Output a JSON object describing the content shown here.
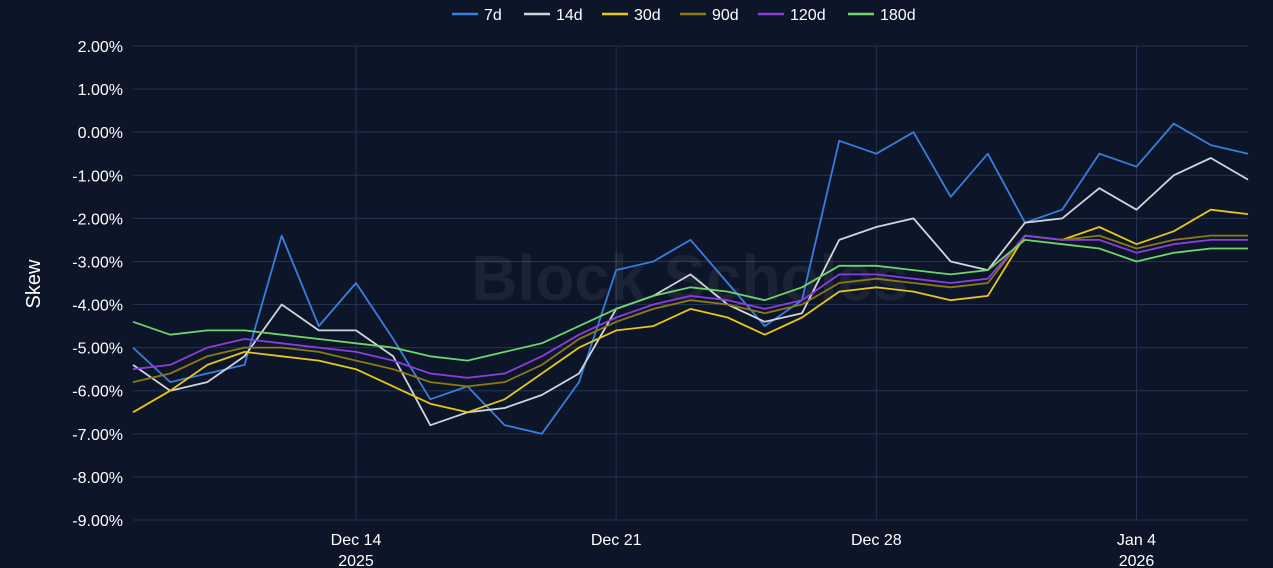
{
  "chart_data": {
    "type": "line",
    "title": "",
    "xlabel": "",
    "ylabel": "Skew",
    "watermark": "Block Scholes",
    "legend_position": "top",
    "grid": true,
    "x_range": [
      "2025-12-08",
      "2026-01-07"
    ],
    "ylim": [
      -9.0,
      2.0
    ],
    "y_ticks": [
      {
        "value": 2,
        "label": "2.00%"
      },
      {
        "value": 1,
        "label": "1.00%"
      },
      {
        "value": 0,
        "label": "0.00%"
      },
      {
        "value": -1,
        "label": "-1.00%"
      },
      {
        "value": -2,
        "label": "-2.00%"
      },
      {
        "value": -3,
        "label": "-3.00%"
      },
      {
        "value": -4,
        "label": "-4.00%"
      },
      {
        "value": -5,
        "label": "-5.00%"
      },
      {
        "value": -6,
        "label": "-6.00%"
      },
      {
        "value": -7,
        "label": "-7.00%"
      },
      {
        "value": -8,
        "label": "-8.00%"
      },
      {
        "value": -9,
        "label": "-9.00%"
      }
    ],
    "x_ticks": [
      {
        "date": "2025-12-14",
        "label": "Dec 14",
        "sublabel": "2025"
      },
      {
        "date": "2025-12-21",
        "label": "Dec 21",
        "sublabel": ""
      },
      {
        "date": "2025-12-28",
        "label": "Dec 28",
        "sublabel": ""
      },
      {
        "date": "2026-01-04",
        "label": "Jan 4",
        "sublabel": "2026"
      }
    ],
    "x": [
      "2025-12-08",
      "2025-12-09",
      "2025-12-10",
      "2025-12-11",
      "2025-12-12",
      "2025-12-13",
      "2025-12-14",
      "2025-12-15",
      "2025-12-16",
      "2025-12-17",
      "2025-12-18",
      "2025-12-19",
      "2025-12-20",
      "2025-12-21",
      "2025-12-22",
      "2025-12-23",
      "2025-12-24",
      "2025-12-25",
      "2025-12-26",
      "2025-12-27",
      "2025-12-28",
      "2025-12-29",
      "2025-12-30",
      "2025-12-31",
      "2026-01-01",
      "2026-01-02",
      "2026-01-03",
      "2026-01-04",
      "2026-01-05",
      "2026-01-06",
      "2026-01-07"
    ],
    "series": [
      {
        "name": "7d",
        "color": "#3b7ddd",
        "values": [
          -5.0,
          -5.8,
          -5.6,
          -5.4,
          -2.4,
          -4.5,
          -3.5,
          -4.8,
          -6.2,
          -5.9,
          -6.8,
          -7.0,
          -5.8,
          -3.2,
          -3.0,
          -2.5,
          -3.5,
          -4.5,
          -3.9,
          -0.2,
          -0.5,
          0.0,
          -1.5,
          -0.5,
          -2.1,
          -1.8,
          -0.5,
          -0.8,
          0.2,
          -0.3,
          -0.5
        ]
      },
      {
        "name": "14d",
        "color": "#d0d4dc",
        "values": [
          -5.4,
          -6.0,
          -5.8,
          -5.2,
          -4.0,
          -4.6,
          -4.6,
          -5.2,
          -6.8,
          -6.5,
          -6.4,
          -6.1,
          -5.6,
          -4.1,
          -3.8,
          -3.3,
          -4.0,
          -4.4,
          -4.2,
          -2.5,
          -2.2,
          -2.0,
          -3.0,
          -3.2,
          -2.1,
          -2.0,
          -1.3,
          -1.8,
          -1.0,
          -0.6,
          -1.1
        ]
      },
      {
        "name": "30d",
        "color": "#e6c619",
        "values": [
          -6.5,
          -6.0,
          -5.4,
          -5.1,
          -5.2,
          -5.3,
          -5.5,
          -5.9,
          -6.3,
          -6.5,
          -6.2,
          -5.6,
          -5.0,
          -4.6,
          -4.5,
          -4.1,
          -4.3,
          -4.7,
          -4.3,
          -3.7,
          -3.6,
          -3.7,
          -3.9,
          -3.8,
          -2.4,
          -2.5,
          -2.2,
          -2.6,
          -2.3,
          -1.8,
          -1.9
        ]
      },
      {
        "name": "90d",
        "color": "#8b7a16",
        "values": [
          -5.8,
          -5.6,
          -5.2,
          -5.0,
          -5.0,
          -5.1,
          -5.3,
          -5.5,
          -5.8,
          -5.9,
          -5.8,
          -5.4,
          -4.8,
          -4.4,
          -4.1,
          -3.9,
          -4.0,
          -4.2,
          -4.0,
          -3.5,
          -3.4,
          -3.5,
          -3.6,
          -3.5,
          -2.4,
          -2.5,
          -2.4,
          -2.7,
          -2.5,
          -2.4,
          -2.4
        ]
      },
      {
        "name": "120d",
        "color": "#8a3de0",
        "values": [
          -5.5,
          -5.4,
          -5.0,
          -4.8,
          -4.9,
          -5.0,
          -5.1,
          -5.3,
          -5.6,
          -5.7,
          -5.6,
          -5.2,
          -4.7,
          -4.3,
          -4.0,
          -3.8,
          -3.9,
          -4.1,
          -3.9,
          -3.3,
          -3.3,
          -3.4,
          -3.5,
          -3.4,
          -2.4,
          -2.5,
          -2.5,
          -2.8,
          -2.6,
          -2.5,
          -2.5
        ]
      },
      {
        "name": "180d",
        "color": "#6fd46a",
        "values": [
          -4.4,
          -4.7,
          -4.6,
          -4.6,
          -4.7,
          -4.8,
          -4.9,
          -5.0,
          -5.2,
          -5.3,
          -5.1,
          -4.9,
          -4.5,
          -4.1,
          -3.8,
          -3.6,
          -3.7,
          -3.9,
          -3.6,
          -3.1,
          -3.1,
          -3.2,
          -3.3,
          -3.2,
          -2.5,
          -2.6,
          -2.7,
          -3.0,
          -2.8,
          -2.7,
          -2.7
        ]
      }
    ]
  }
}
